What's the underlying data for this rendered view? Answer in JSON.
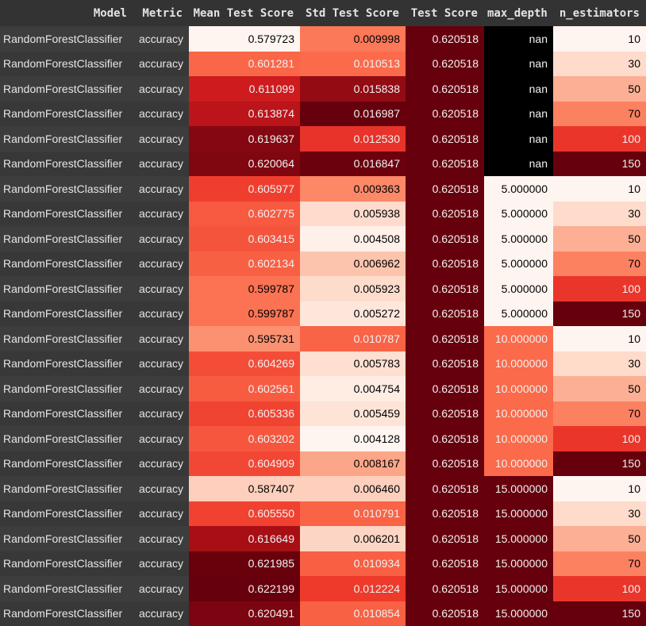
{
  "table": {
    "columns": [
      "Model",
      "Metric",
      "Mean Test Score",
      "Std Test Score",
      "Test Score",
      "max_depth",
      "n_estimators"
    ],
    "rows": [
      {
        "model": "RandomForestClassifier",
        "metric": "accuracy",
        "mean_test_score": "0.579723",
        "std_test_score": "0.009998",
        "test_score": "0.620518",
        "max_depth": "nan",
        "n_estimators": "10"
      },
      {
        "model": "RandomForestClassifier",
        "metric": "accuracy",
        "mean_test_score": "0.601281",
        "std_test_score": "0.010513",
        "test_score": "0.620518",
        "max_depth": "nan",
        "n_estimators": "30"
      },
      {
        "model": "RandomForestClassifier",
        "metric": "accuracy",
        "mean_test_score": "0.611099",
        "std_test_score": "0.015838",
        "test_score": "0.620518",
        "max_depth": "nan",
        "n_estimators": "50"
      },
      {
        "model": "RandomForestClassifier",
        "metric": "accuracy",
        "mean_test_score": "0.613874",
        "std_test_score": "0.016987",
        "test_score": "0.620518",
        "max_depth": "nan",
        "n_estimators": "70"
      },
      {
        "model": "RandomForestClassifier",
        "metric": "accuracy",
        "mean_test_score": "0.619637",
        "std_test_score": "0.012530",
        "test_score": "0.620518",
        "max_depth": "nan",
        "n_estimators": "100"
      },
      {
        "model": "RandomForestClassifier",
        "metric": "accuracy",
        "mean_test_score": "0.620064",
        "std_test_score": "0.016847",
        "test_score": "0.620518",
        "max_depth": "nan",
        "n_estimators": "150"
      },
      {
        "model": "RandomForestClassifier",
        "metric": "accuracy",
        "mean_test_score": "0.605977",
        "std_test_score": "0.009363",
        "test_score": "0.620518",
        "max_depth": "5.000000",
        "n_estimators": "10"
      },
      {
        "model": "RandomForestClassifier",
        "metric": "accuracy",
        "mean_test_score": "0.602775",
        "std_test_score": "0.005938",
        "test_score": "0.620518",
        "max_depth": "5.000000",
        "n_estimators": "30"
      },
      {
        "model": "RandomForestClassifier",
        "metric": "accuracy",
        "mean_test_score": "0.603415",
        "std_test_score": "0.004508",
        "test_score": "0.620518",
        "max_depth": "5.000000",
        "n_estimators": "50"
      },
      {
        "model": "RandomForestClassifier",
        "metric": "accuracy",
        "mean_test_score": "0.602134",
        "std_test_score": "0.006962",
        "test_score": "0.620518",
        "max_depth": "5.000000",
        "n_estimators": "70"
      },
      {
        "model": "RandomForestClassifier",
        "metric": "accuracy",
        "mean_test_score": "0.599787",
        "std_test_score": "0.005923",
        "test_score": "0.620518",
        "max_depth": "5.000000",
        "n_estimators": "100"
      },
      {
        "model": "RandomForestClassifier",
        "metric": "accuracy",
        "mean_test_score": "0.599787",
        "std_test_score": "0.005272",
        "test_score": "0.620518",
        "max_depth": "5.000000",
        "n_estimators": "150"
      },
      {
        "model": "RandomForestClassifier",
        "metric": "accuracy",
        "mean_test_score": "0.595731",
        "std_test_score": "0.010787",
        "test_score": "0.620518",
        "max_depth": "10.000000",
        "n_estimators": "10"
      },
      {
        "model": "RandomForestClassifier",
        "metric": "accuracy",
        "mean_test_score": "0.604269",
        "std_test_score": "0.005783",
        "test_score": "0.620518",
        "max_depth": "10.000000",
        "n_estimators": "30"
      },
      {
        "model": "RandomForestClassifier",
        "metric": "accuracy",
        "mean_test_score": "0.602561",
        "std_test_score": "0.004754",
        "test_score": "0.620518",
        "max_depth": "10.000000",
        "n_estimators": "50"
      },
      {
        "model": "RandomForestClassifier",
        "metric": "accuracy",
        "mean_test_score": "0.605336",
        "std_test_score": "0.005459",
        "test_score": "0.620518",
        "max_depth": "10.000000",
        "n_estimators": "70"
      },
      {
        "model": "RandomForestClassifier",
        "metric": "accuracy",
        "mean_test_score": "0.603202",
        "std_test_score": "0.004128",
        "test_score": "0.620518",
        "max_depth": "10.000000",
        "n_estimators": "100"
      },
      {
        "model": "RandomForestClassifier",
        "metric": "accuracy",
        "mean_test_score": "0.604909",
        "std_test_score": "0.008167",
        "test_score": "0.620518",
        "max_depth": "10.000000",
        "n_estimators": "150"
      },
      {
        "model": "RandomForestClassifier",
        "metric": "accuracy",
        "mean_test_score": "0.587407",
        "std_test_score": "0.006460",
        "test_score": "0.620518",
        "max_depth": "15.000000",
        "n_estimators": "10"
      },
      {
        "model": "RandomForestClassifier",
        "metric": "accuracy",
        "mean_test_score": "0.605550",
        "std_test_score": "0.010791",
        "test_score": "0.620518",
        "max_depth": "15.000000",
        "n_estimators": "30"
      },
      {
        "model": "RandomForestClassifier",
        "metric": "accuracy",
        "mean_test_score": "0.616649",
        "std_test_score": "0.006201",
        "test_score": "0.620518",
        "max_depth": "15.000000",
        "n_estimators": "50"
      },
      {
        "model": "RandomForestClassifier",
        "metric": "accuracy",
        "mean_test_score": "0.621985",
        "std_test_score": "0.010934",
        "test_score": "0.620518",
        "max_depth": "15.000000",
        "n_estimators": "70"
      },
      {
        "model": "RandomForestClassifier",
        "metric": "accuracy",
        "mean_test_score": "0.622199",
        "std_test_score": "0.012224",
        "test_score": "0.620518",
        "max_depth": "15.000000",
        "n_estimators": "100"
      },
      {
        "model": "RandomForestClassifier",
        "metric": "accuracy",
        "mean_test_score": "0.620491",
        "std_test_score": "0.010854",
        "test_score": "0.620518",
        "max_depth": "15.000000",
        "n_estimators": "150"
      }
    ]
  },
  "colors": {
    "page_background": "#333333",
    "colormap": "Reds",
    "colormap_stops": [
      "#fff5f0",
      "#fee0d2",
      "#fcbba1",
      "#fc9272",
      "#fb6a4a",
      "#ef3b2c",
      "#cb181d",
      "#a50f15",
      "#67000d"
    ],
    "nan_cell": "#000000",
    "index_text": "#e6e6e6",
    "header_text": "#e4e4e4"
  }
}
